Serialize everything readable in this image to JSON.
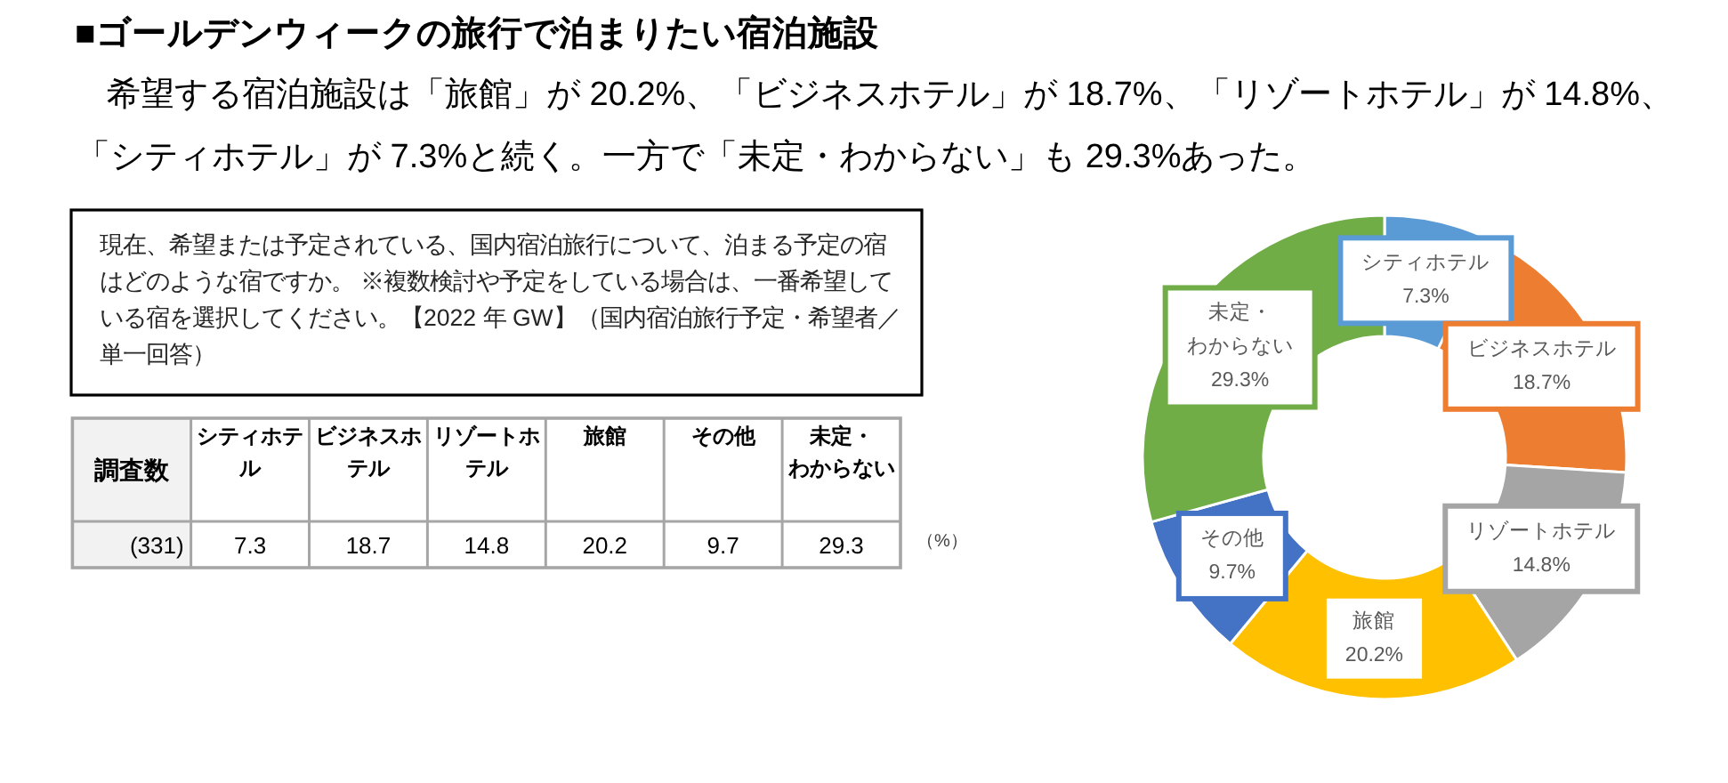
{
  "chart_data": [
    {
      "type": "other",
      "title": "■ゴールデンウィークの旅行で泊まりたい宿泊施設",
      "subtitle": "希望する宿泊施設は「旅館」が 20.2%、「ビジネスホテル」が 18.7%、「リゾートホテル」が 14.8%、「シティホテル」が 7.3%と続く。一方で「未定・わからない」も 29.3%あった。",
      "categories": [
        "シティホテル",
        "ビジネスホテル",
        "リゾートホテル",
        "旅館",
        "その他",
        "未定・わからない"
      ],
      "values": [
        7.3,
        18.7,
        14.8,
        20.2,
        9.7,
        29.3
      ],
      "data_labels": true,
      "annotations": [
        "現在、希望または予定されている、国内宿泊旅行について、泊まる予定の宿はどのような宿ですか。 ※複数検討や予定をしている場合は、一番希望している宿を選択してください。【2022 年 GW】（国内宿泊旅行予定・希望者／単一回答）",
        "調査数",
        "(331)",
        "（%）"
      ]
    },
    {
      "type": "donut",
      "categories": [
        "シティホテル",
        "ビジネスホテル",
        "リゾートホテル",
        "旅館",
        "その他",
        "未定・わからない"
      ],
      "values": [
        7.3,
        18.7,
        14.8,
        20.2,
        9.7,
        29.3
      ],
      "colors": [
        "#5b9bd5",
        "#ed7d31",
        "#a5a5a5",
        "#ffc000",
        "#4472c4",
        "#70ad47"
      ],
      "value_labels": [
        "7.3%",
        "18.7%",
        "14.8%",
        "20.2%",
        "9.7%",
        "29.3%"
      ]
    }
  ]
}
